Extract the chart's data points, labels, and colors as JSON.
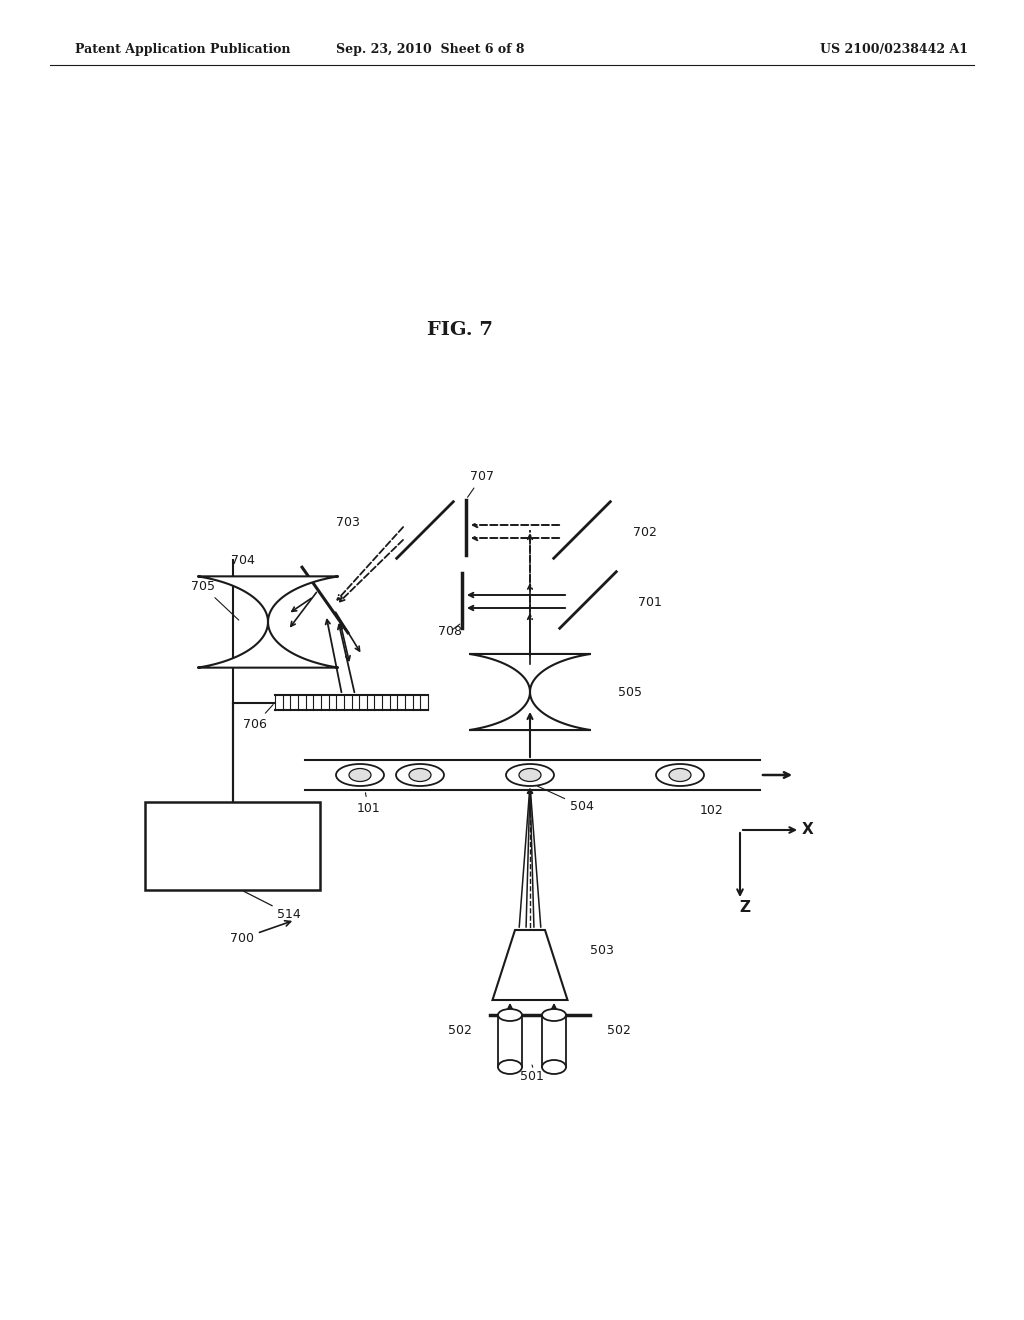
{
  "bg_color": "#ffffff",
  "line_color": "#1a1a1a",
  "header_left": "Patent Application Publication",
  "header_mid": "Sep. 23, 2010  Sheet 6 of 8",
  "header_right": "US 2100/0238442 A1",
  "fig_label": "FIG. 7"
}
